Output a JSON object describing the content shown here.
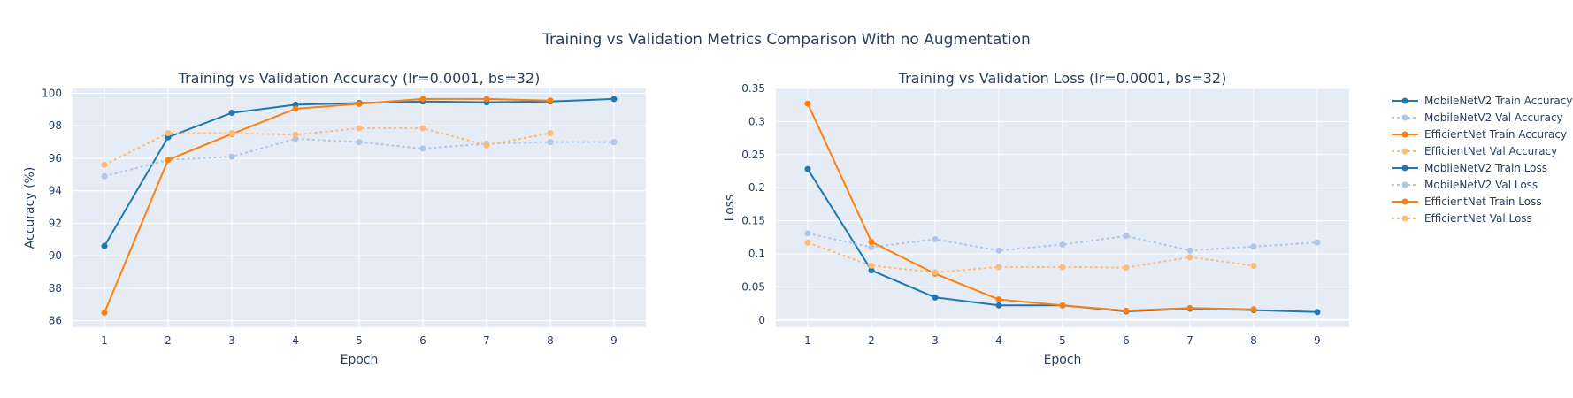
{
  "title": "Training vs Validation Metrics Comparison With no Augmentation",
  "chart_data": [
    {
      "type": "line",
      "title": "Training vs Validation Accuracy (lr=0.0001, bs=32)",
      "xlabel": "Epoch",
      "ylabel": "Accuracy (%)",
      "x_ticks": [
        1,
        2,
        3,
        4,
        5,
        6,
        7,
        8,
        9
      ],
      "y_ticks": [
        86,
        88,
        90,
        92,
        94,
        96,
        98,
        100
      ],
      "xlim": [
        0.5,
        9.5
      ],
      "ylim": [
        85.6,
        100.3
      ],
      "grid": true,
      "series": [
        {
          "name": "MobileNetV2 Train Accuracy",
          "color": "#1f77b4",
          "dash": "solid",
          "x": [
            1,
            2,
            3,
            4,
            5,
            6,
            7,
            8,
            9
          ],
          "y": [
            90.6,
            97.3,
            98.8,
            99.3,
            99.4,
            99.5,
            99.45,
            99.5,
            99.65
          ]
        },
        {
          "name": "MobileNetV2 Val Accuracy",
          "color": "#aec7e8",
          "dash": "dot",
          "x": [
            1,
            2,
            3,
            4,
            5,
            6,
            7,
            8,
            9
          ],
          "y": [
            94.9,
            95.9,
            96.1,
            97.2,
            97.0,
            96.6,
            96.9,
            97.0,
            97.0
          ]
        },
        {
          "name": "EfficientNet Train Accuracy",
          "color": "#ff7f0e",
          "dash": "solid",
          "x": [
            1,
            2,
            3,
            4,
            5,
            6,
            7,
            8
          ],
          "y": [
            86.5,
            95.9,
            97.5,
            99.05,
            99.35,
            99.65,
            99.65,
            99.55
          ]
        },
        {
          "name": "EfficientNet Val Accuracy",
          "color": "#ffbb78",
          "dash": "dot",
          "x": [
            1,
            2,
            3,
            4,
            5,
            6,
            7,
            8
          ],
          "y": [
            95.6,
            97.55,
            97.55,
            97.45,
            97.85,
            97.85,
            96.8,
            97.55
          ]
        }
      ]
    },
    {
      "type": "line",
      "title": "Training vs Validation Loss (lr=0.0001, bs=32)",
      "xlabel": "Epoch",
      "ylabel": "Loss",
      "x_ticks": [
        1,
        2,
        3,
        4,
        5,
        6,
        7,
        8,
        9
      ],
      "y_ticks": [
        0,
        0.05,
        0.1,
        0.15,
        0.2,
        0.25,
        0.3,
        0.35
      ],
      "y_tick_labels": [
        "0",
        "0.05",
        "0.1",
        "0.15",
        "0.2",
        "0.25",
        "0.3",
        "0.35"
      ],
      "xlim": [
        0.5,
        9.5
      ],
      "ylim": [
        -0.011,
        0.35
      ],
      "grid": true,
      "series": [
        {
          "name": "MobileNetV2 Train Loss",
          "color": "#1f77b4",
          "dash": "solid",
          "x": [
            1,
            2,
            3,
            4,
            5,
            6,
            7,
            8,
            9
          ],
          "y": [
            0.228,
            0.075,
            0.034,
            0.022,
            0.022,
            0.013,
            0.017,
            0.015,
            0.012
          ]
        },
        {
          "name": "MobileNetV2 Val Loss",
          "color": "#aec7e8",
          "dash": "dot",
          "x": [
            1,
            2,
            3,
            4,
            5,
            6,
            7,
            8,
            9
          ],
          "y": [
            0.131,
            0.11,
            0.122,
            0.105,
            0.114,
            0.127,
            0.105,
            0.111,
            0.117
          ]
        },
        {
          "name": "EfficientNet Train Loss",
          "color": "#ff7f0e",
          "dash": "solid",
          "x": [
            1,
            2,
            3,
            4,
            5,
            6,
            7,
            8
          ],
          "y": [
            0.327,
            0.118,
            0.07,
            0.031,
            0.022,
            0.014,
            0.018,
            0.016
          ]
        },
        {
          "name": "EfficientNet Val Loss",
          "color": "#ffbb78",
          "dash": "dot",
          "x": [
            1,
            2,
            3,
            4,
            5,
            6,
            7,
            8
          ],
          "y": [
            0.117,
            0.082,
            0.072,
            0.08,
            0.08,
            0.079,
            0.095,
            0.082
          ]
        }
      ]
    }
  ],
  "legend": {
    "position": "right",
    "items": [
      {
        "label": "MobileNetV2 Train Accuracy",
        "color": "#1f77b4",
        "dash": "solid"
      },
      {
        "label": "MobileNetV2 Val Accuracy",
        "color": "#aec7e8",
        "dash": "dot"
      },
      {
        "label": "EfficientNet Train Accuracy",
        "color": "#ff7f0e",
        "dash": "solid"
      },
      {
        "label": "EfficientNet Val Accuracy",
        "color": "#ffbb78",
        "dash": "dot"
      },
      {
        "label": "MobileNetV2 Train Loss",
        "color": "#1f77b4",
        "dash": "solid"
      },
      {
        "label": "MobileNetV2 Val Loss",
        "color": "#aec7e8",
        "dash": "dot"
      },
      {
        "label": "EfficientNet Train Loss",
        "color": "#ff7f0e",
        "dash": "solid"
      },
      {
        "label": "EfficientNet Val Loss",
        "color": "#ffbb78",
        "dash": "dot"
      }
    ]
  },
  "colors": {
    "plot_background": "#e5ecf6",
    "grid": "#ffffff",
    "text": "#2a3f5f"
  }
}
